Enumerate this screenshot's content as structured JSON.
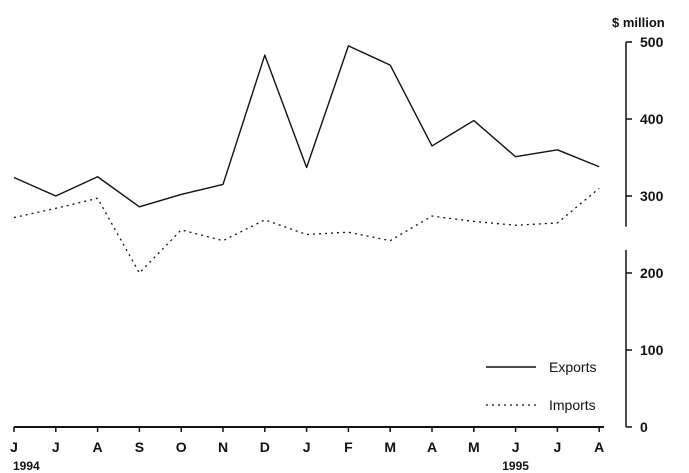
{
  "chart_data": {
    "type": "line",
    "unit_label": "$ million",
    "categories": [
      "J",
      "J",
      "A",
      "S",
      "O",
      "N",
      "D",
      "J",
      "F",
      "M",
      "A",
      "M",
      "J",
      "J",
      "A"
    ],
    "year_labels": [
      {
        "index": 0,
        "text": "1994"
      },
      {
        "index": 12,
        "text": "1995"
      }
    ],
    "series": [
      {
        "name": "Exports",
        "style": "solid",
        "values": [
          324,
          300,
          325,
          286,
          302,
          315,
          483,
          337,
          495,
          470,
          365,
          398,
          351,
          360,
          338
        ]
      },
      {
        "name": "Imports",
        "style": "dotted",
        "values": [
          272,
          284,
          297,
          200,
          256,
          242,
          269,
          250,
          253,
          242,
          274,
          267,
          262,
          265,
          310
        ]
      }
    ],
    "ylim": [
      0,
      500
    ],
    "yticks": [
      0,
      100,
      200,
      300,
      400,
      500
    ],
    "axis_break_between": [
      230,
      260
    ],
    "grid": false,
    "legend_position": "bottom-right"
  }
}
